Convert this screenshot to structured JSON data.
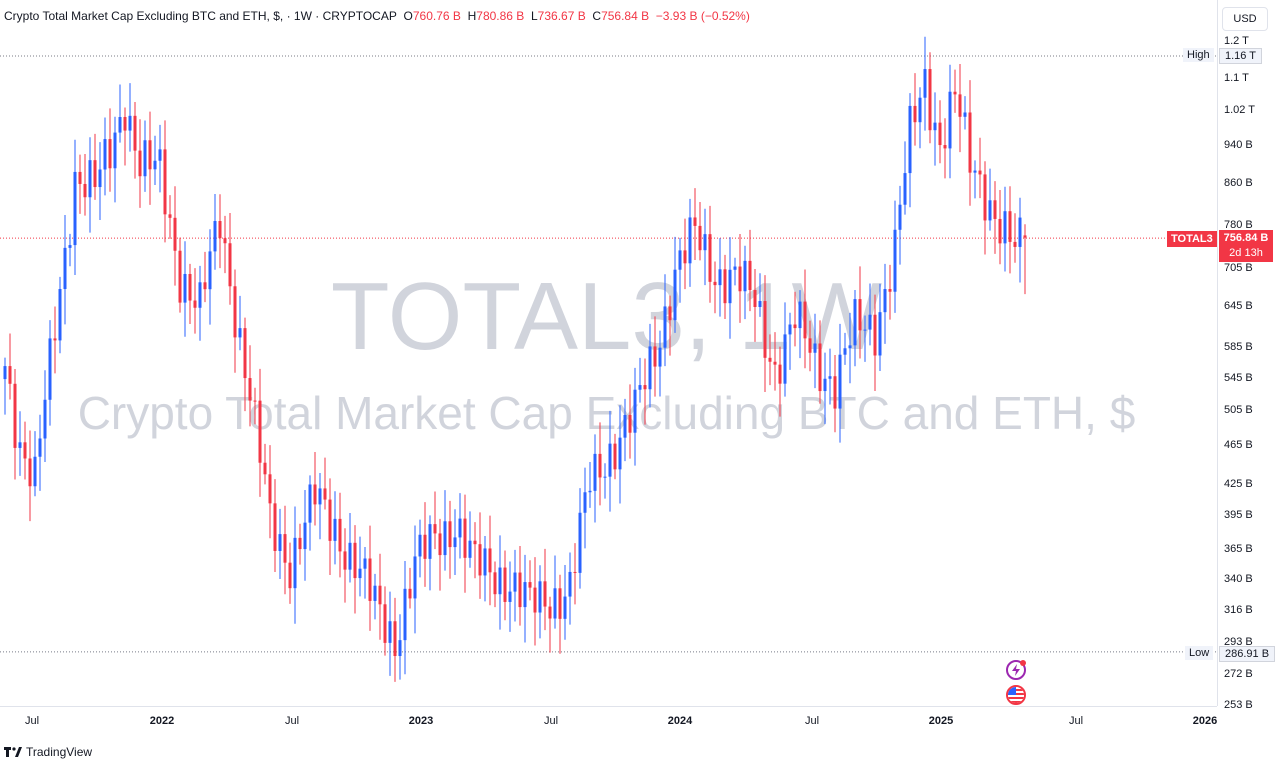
{
  "legend": {
    "title": "Crypto Total Market Cap Excluding BTC and ETH, $",
    "sep": "·",
    "interval": "1W",
    "exchange": "CRYPTOCAP",
    "o_label": "O",
    "o_value": "760.76 B",
    "h_label": "H",
    "h_value": "780.86 B",
    "l_label": "L",
    "l_value": "736.67 B",
    "c_label": "C",
    "c_value": "756.84 B",
    "change": "−3.93 B (−0.52%)"
  },
  "watermark": {
    "symbol": "TOTAL3, 1W",
    "name": "Crypto Total Market Cap Excluding BTC and ETH, $"
  },
  "currency": "USD",
  "price_tag": {
    "symbol": "TOTAL3",
    "value": "756.84 B",
    "countdown": "2d 13h"
  },
  "high": {
    "label": "High",
    "value": "1.16 T"
  },
  "low": {
    "label": "Low",
    "value": "286.91 B"
  },
  "footer": {
    "brand": "TradingView"
  },
  "colors": {
    "up": "#2962ff",
    "down": "#f23645",
    "axis_text": "#131722",
    "watermark": "#d1d4dc"
  },
  "chart_data": {
    "type": "candlestick",
    "title": "Crypto Total Market Cap Excluding BTC and ETH, $",
    "symbol": "TOTAL3",
    "interval": "1W",
    "scale": "log",
    "y_unit": "USD (B)",
    "ylim": [
      253,
      1200
    ],
    "y_ticks": [
      "1.2 T",
      "1.1 T",
      "1.02 T",
      "940 B",
      "860 B",
      "780 B",
      "705 B",
      "645 B",
      "585 B",
      "545 B",
      "505 B",
      "465 B",
      "425 B",
      "395 B",
      "365 B",
      "340 B",
      "316 B",
      "293 B",
      "272 B",
      "253 B"
    ],
    "y_tick_values": [
      1200,
      1100,
      1020,
      940,
      860,
      780,
      705,
      645,
      585,
      545,
      505,
      465,
      425,
      395,
      365,
      340,
      316,
      293,
      272,
      253
    ],
    "x_ticks": [
      "Jul",
      "2022",
      "Jul",
      "2023",
      "Jul",
      "2024",
      "Jul",
      "2025",
      "Jul",
      "2026"
    ],
    "x_tick_bold": [
      false,
      true,
      false,
      true,
      false,
      true,
      false,
      true,
      false,
      true
    ],
    "anchors_close": [
      [
        0,
        560
      ],
      [
        3,
        470
      ],
      [
        6,
        430
      ],
      [
        10,
        610
      ],
      [
        14,
        880
      ],
      [
        18,
        850
      ],
      [
        21,
        920
      ],
      [
        24,
        1050
      ],
      [
        27,
        900
      ],
      [
        31,
        880
      ],
      [
        35,
        700
      ],
      [
        39,
        640
      ],
      [
        43,
        790
      ],
      [
        48,
        560
      ],
      [
        53,
        390
      ],
      [
        57,
        355
      ],
      [
        62,
        410
      ],
      [
        66,
        385
      ],
      [
        70,
        352
      ],
      [
        74,
        320
      ],
      [
        78,
        297
      ],
      [
        82,
        350
      ],
      [
        86,
        375
      ],
      [
        90,
        390
      ],
      [
        94,
        350
      ],
      [
        98,
        345
      ],
      [
        101,
        340
      ],
      [
        105,
        318
      ],
      [
        109,
        325
      ],
      [
        113,
        335
      ],
      [
        117,
        425
      ],
      [
        122,
        470
      ],
      [
        126,
        500
      ],
      [
        130,
        580
      ],
      [
        134,
        700
      ],
      [
        138,
        760
      ],
      [
        142,
        700
      ],
      [
        146,
        690
      ],
      [
        150,
        650
      ],
      [
        154,
        560
      ],
      [
        158,
        620
      ],
      [
        162,
        570
      ],
      [
        166,
        540
      ],
      [
        170,
        610
      ],
      [
        174,
        615
      ],
      [
        178,
        740
      ],
      [
        181,
        960
      ],
      [
        184,
        1100
      ],
      [
        187,
        950
      ],
      [
        190,
        1050
      ],
      [
        193,
        900
      ],
      [
        196,
        850
      ],
      [
        199,
        780
      ],
      [
        202,
        730
      ],
      [
        204,
        757
      ]
    ],
    "last": {
      "open": 760.76,
      "high": 780.86,
      "low": 736.67,
      "close": 756.84,
      "change": -3.93,
      "change_pct": -0.52
    },
    "high": 1160,
    "low": 286.91
  }
}
